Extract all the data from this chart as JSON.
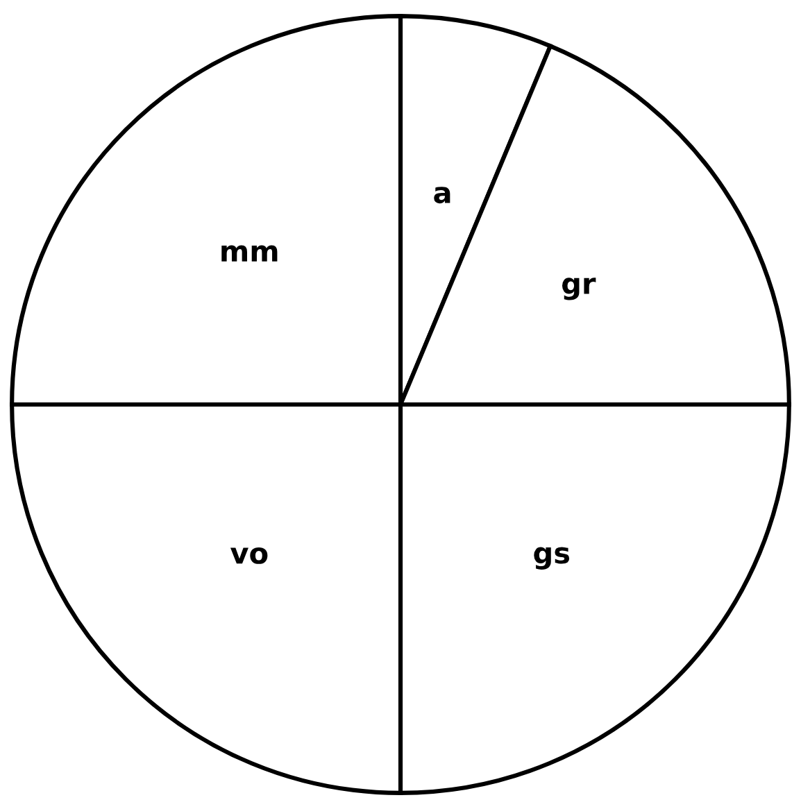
{
  "chart_data": {
    "type": "pie",
    "categories": [
      "a",
      "gr",
      "gs",
      "vo",
      "mm"
    ],
    "values": [
      6.3,
      18.7,
      25,
      25,
      25
    ],
    "colors": [
      "#ffffff",
      "#ffffff",
      "#ffffff",
      "#ffffff",
      "#ffffff"
    ]
  }
}
